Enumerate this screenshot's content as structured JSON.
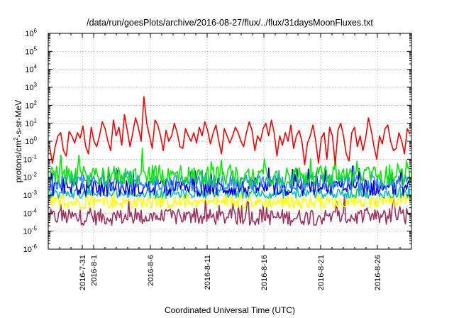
{
  "chart_data": {
    "type": "line",
    "title": "/data/run/goesPlots/archive/2016-08-27/flux/../flux/31daysMoonFluxes.txt",
    "xlabel": "Coordinated Universal Time (UTC)",
    "ylabel": {
      "base": "protons/cm",
      "sup": "2",
      "rest": "-s-sr-MeV"
    },
    "yscale": "log",
    "ylim_exp": [
      -6,
      6
    ],
    "y_ticks": [
      {
        "base": "10",
        "exp": "-6"
      },
      {
        "base": "10",
        "exp": "-5"
      },
      {
        "base": "10",
        "exp": "-4"
      },
      {
        "base": "10",
        "exp": "-3"
      },
      {
        "base": "10",
        "exp": "-2"
      },
      {
        "base": "10",
        "exp": "-1"
      },
      {
        "base": "10",
        "exp": "0"
      },
      {
        "base": "10",
        "exp": "1"
      },
      {
        "base": "10",
        "exp": "2"
      },
      {
        "base": "10",
        "exp": "3"
      },
      {
        "base": "10",
        "exp": "4"
      },
      {
        "base": "10",
        "exp": "5"
      },
      {
        "base": "10",
        "exp": "6"
      }
    ],
    "x_range": [
      "2016-07-28",
      "2016-08-29"
    ],
    "x_ticks": [
      "2016-7-31",
      "2016-8-1",
      "2016-8-6",
      "2016-8-11",
      "2016-8-16",
      "2016-8-21",
      "2016-8-26"
    ],
    "grid": true,
    "series": [
      {
        "color": "#ff0000",
        "median": 1.2,
        "spread": 1.9,
        "values": [
          0.5,
          0.06,
          0.5,
          2,
          3,
          0.3,
          0.15,
          3.5,
          2,
          0.8,
          3,
          1.5,
          7,
          0.5,
          0.2,
          6,
          1,
          0.5,
          2,
          12,
          5,
          1,
          0.3,
          15,
          2,
          6,
          0.6,
          30,
          4,
          0.5,
          3,
          20,
          6,
          1,
          300,
          10,
          2,
          0.4,
          15,
          8,
          2,
          0.3,
          4,
          1,
          2,
          10,
          3,
          0.5,
          0.4,
          5,
          2,
          1,
          3,
          0.8,
          6,
          2,
          12,
          4,
          0.7,
          3,
          8,
          1,
          0.2,
          5,
          2,
          0.8,
          2,
          6,
          3,
          1,
          0.5,
          3,
          12,
          4,
          0.3,
          2,
          1,
          5,
          10,
          2,
          15,
          3,
          0.15,
          2,
          0.6,
          3,
          1,
          8,
          0.4,
          2,
          4,
          1,
          0.05,
          0.8,
          2,
          8,
          1,
          0.06,
          1.5,
          3,
          0.1,
          6,
          2,
          0.05,
          4,
          10,
          2,
          0.2,
          0.08,
          3,
          6,
          0.5,
          2,
          0.3,
          1.5,
          20,
          4,
          0.5,
          0.1,
          2,
          0.7,
          5,
          8,
          1,
          0.3,
          0.4,
          3,
          1,
          0.2,
          5,
          2.5
        ]
      },
      {
        "color": "#00ee00",
        "median": 0.012,
        "spread": 0.55
      },
      {
        "color": "#3388ff",
        "median": 0.005,
        "spread": 0.45
      },
      {
        "color": "#0000dd",
        "median": 0.0025,
        "spread": 0.45
      },
      {
        "color": "#00c0c0",
        "median": 0.0012,
        "spread": 0.25
      },
      {
        "color": "#ffff00",
        "median": 0.0004,
        "spread": 0.35
      },
      {
        "color": "#a03060",
        "median": 6e-05,
        "spread": 0.45
      }
    ]
  }
}
